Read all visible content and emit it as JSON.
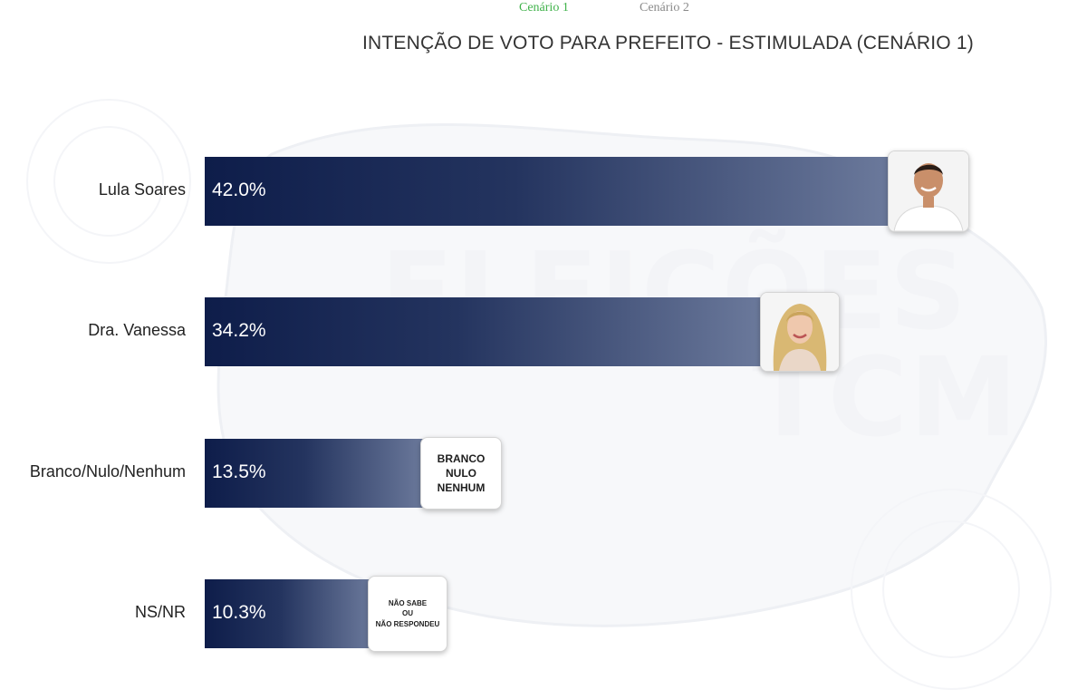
{
  "tabs": [
    {
      "label": "Cenário 1",
      "active": true
    },
    {
      "label": "Cenário 2",
      "active": false
    }
  ],
  "colors": {
    "accent": "#3fb24a",
    "bar_start": "#0e1d4a",
    "bar_end": "#6c7a9c"
  },
  "chart_data": {
    "type": "bar",
    "orientation": "horizontal",
    "title": "INTENÇÃO DE VOTO PARA PREFEITO - ESTIMULADA (CENÁRIO 1)",
    "categories": [
      "Lula Soares",
      "Dra. Vanessa",
      "Branco/Nulo/Nenhum",
      "NS/NR"
    ],
    "values": [
      42.0,
      34.2,
      13.5,
      10.3
    ],
    "value_labels": [
      "42.0%",
      "34.2%",
      "13.5%",
      "10.3%"
    ],
    "badges": [
      {
        "kind": "photo",
        "icon": "man-candidate-photo-icon"
      },
      {
        "kind": "photo",
        "icon": "woman-candidate-photo-icon"
      },
      {
        "kind": "text",
        "lines": [
          "BRANCO",
          "NULO",
          "NENHUM"
        ]
      },
      {
        "kind": "text",
        "lines": [
          "NÃO SABE",
          "OU",
          "NÃO RESPONDEU"
        ]
      }
    ],
    "xlim": [
      0,
      42.0
    ],
    "grid": false,
    "legend": "none"
  }
}
